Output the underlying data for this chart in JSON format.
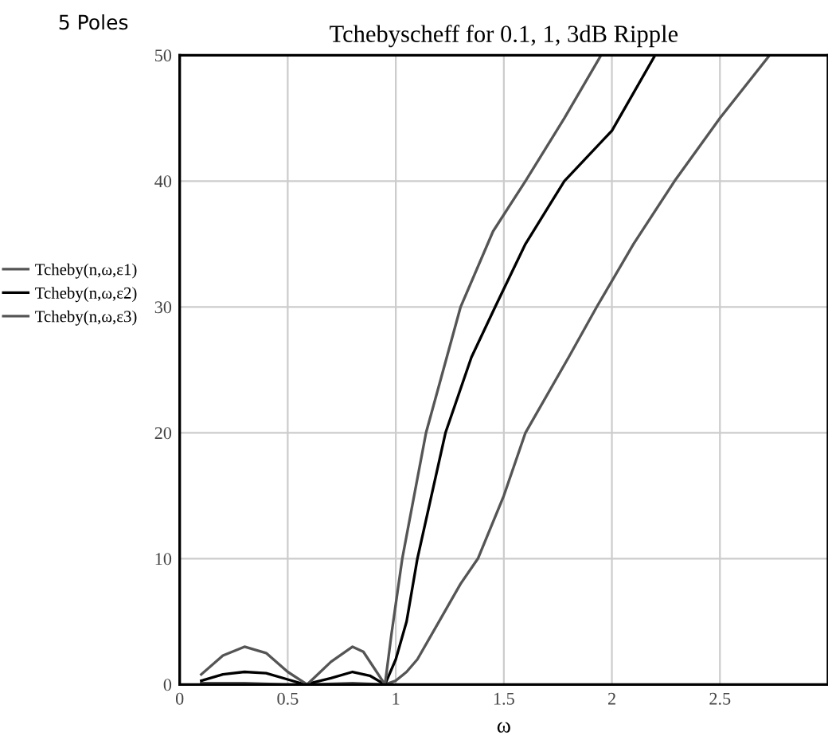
{
  "chart_data": {
    "type": "line",
    "title": "Tchebyscheff for 0.1, 1, 3dB Ripple",
    "annotations": [
      "5 Poles"
    ],
    "xlabel": "ω",
    "xlim": [
      0,
      3
    ],
    "xticks": [
      0,
      0.5,
      1,
      1.5,
      2,
      2.5
    ],
    "ylim": [
      0,
      50
    ],
    "yticks": [
      0,
      10,
      20,
      30,
      40,
      50
    ],
    "grid": true,
    "legend": "left",
    "line_style": "solid",
    "series": [
      {
        "name": "Tcheby(n,ω,ε1)",
        "color": "#555555",
        "x": [
          0.1,
          0.3,
          0.5,
          0.6,
          0.8,
          0.95,
          1.0,
          1.05,
          1.1,
          1.2,
          1.3,
          1.38,
          1.5,
          1.6,
          1.8,
          1.93,
          2.1,
          2.29,
          2.5,
          2.73
        ],
        "values": [
          0.1,
          0.1,
          0,
          0,
          0.1,
          0,
          0.3,
          1,
          2,
          5,
          8,
          10,
          15,
          20,
          26,
          30,
          35,
          40,
          45,
          50
        ]
      },
      {
        "name": "Tcheby(n,ω,ε2)",
        "color": "#000000",
        "x": [
          0.1,
          0.2,
          0.3,
          0.4,
          0.5,
          0.58,
          0.7,
          0.8,
          0.88,
          0.95,
          1.0,
          1.05,
          1.1,
          1.23,
          1.35,
          1.46,
          1.6,
          1.78,
          2.0,
          2.2
        ],
        "values": [
          0.3,
          0.8,
          1.0,
          0.9,
          0.4,
          0,
          0.5,
          1.0,
          0.7,
          0,
          2,
          5,
          10,
          20,
          26,
          30,
          35,
          40,
          44,
          50
        ]
      },
      {
        "name": "Tcheby(n,ω,ε3)",
        "color": "#555555",
        "x": [
          0.1,
          0.2,
          0.3,
          0.4,
          0.5,
          0.59,
          0.7,
          0.8,
          0.85,
          0.95,
          0.98,
          1.03,
          1.14,
          1.3,
          1.45,
          1.6,
          1.78,
          1.95
        ],
        "values": [
          0.8,
          2.3,
          3.0,
          2.5,
          1.0,
          0,
          1.8,
          3.0,
          2.6,
          0,
          4,
          10,
          20,
          30,
          36,
          40,
          45,
          50
        ]
      }
    ]
  }
}
